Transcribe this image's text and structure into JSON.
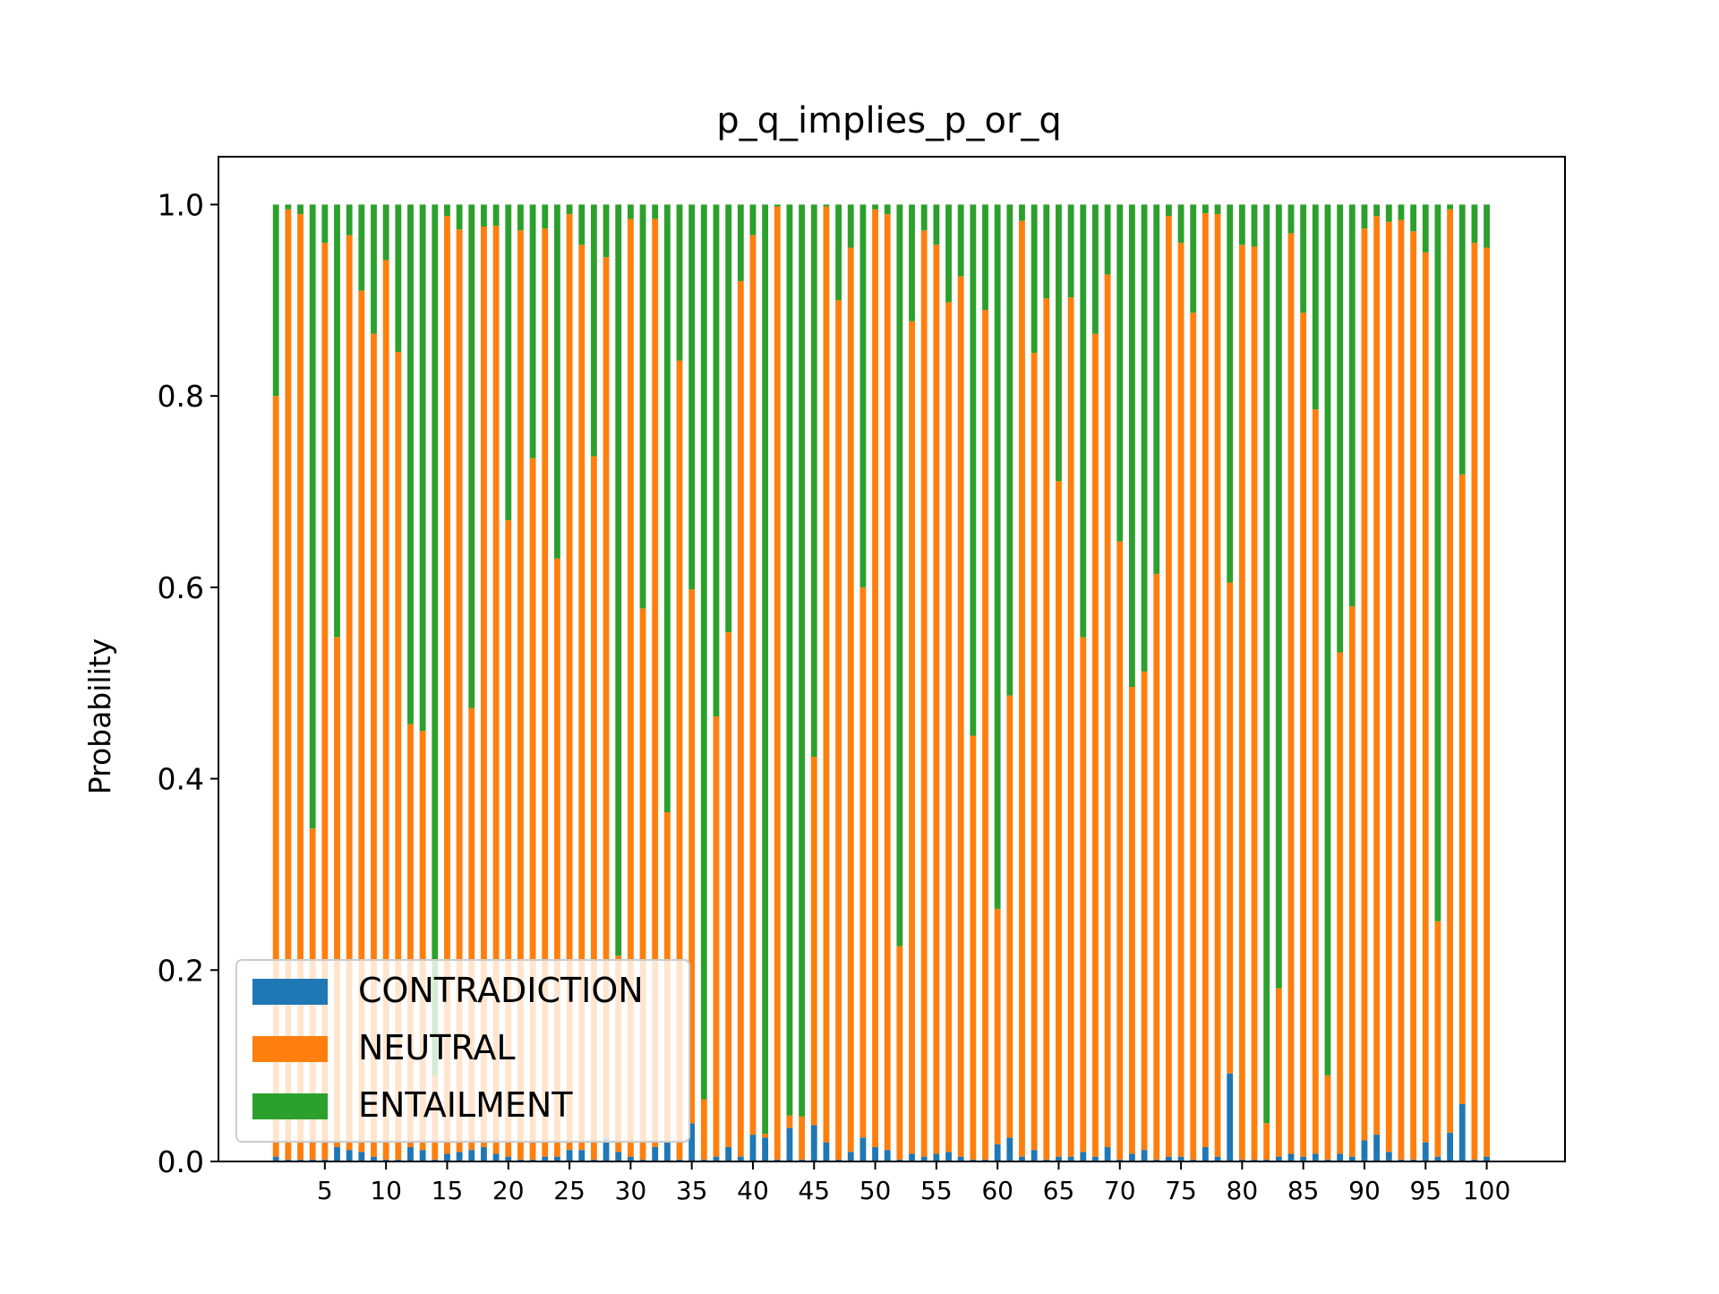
{
  "chart_data": {
    "type": "bar",
    "stacked": true,
    "title": "p_q_implies_p_or_q",
    "xlabel": "",
    "ylabel": "Probability",
    "xlim": [
      -3.7,
      106.4
    ],
    "ylim": [
      0,
      1.05
    ],
    "x": [
      1,
      2,
      3,
      4,
      5,
      6,
      7,
      8,
      9,
      10,
      11,
      12,
      13,
      14,
      15,
      16,
      17,
      18,
      19,
      20,
      21,
      22,
      23,
      24,
      25,
      26,
      27,
      28,
      29,
      30,
      31,
      32,
      33,
      34,
      35,
      36,
      37,
      38,
      39,
      40,
      41,
      42,
      43,
      44,
      45,
      46,
      47,
      48,
      49,
      50,
      51,
      52,
      53,
      54,
      55,
      56,
      57,
      58,
      59,
      60,
      61,
      62,
      63,
      64,
      65,
      66,
      67,
      68,
      69,
      70,
      71,
      72,
      73,
      74,
      75,
      76,
      77,
      78,
      79,
      80,
      81,
      82,
      83,
      84,
      85,
      86,
      87,
      88,
      89,
      90,
      91,
      92,
      93,
      94,
      95,
      96,
      97,
      98,
      99,
      100
    ],
    "x_ticks": [
      5,
      10,
      15,
      20,
      25,
      30,
      35,
      40,
      45,
      50,
      55,
      60,
      65,
      70,
      75,
      80,
      85,
      90,
      95,
      100
    ],
    "x_tick_labels": [
      "5",
      "10",
      "15",
      "20",
      "25",
      "30",
      "35",
      "40",
      "45",
      "50",
      "55",
      "60",
      "65",
      "70",
      "75",
      "80",
      "85",
      "90",
      "95",
      "100"
    ],
    "y_ticks": [
      0.0,
      0.2,
      0.4,
      0.6,
      0.8,
      1.0
    ],
    "y_tick_labels": [
      "0.0",
      "0.2",
      "0.4",
      "0.6",
      "0.8",
      "1.0"
    ],
    "series": [
      {
        "name": "CONTRADICTION",
        "color": "#1f77b4",
        "values": [
          0.005,
          0.002,
          0.002,
          0.002,
          0.002,
          0.015,
          0.012,
          0.01,
          0.005,
          0.002,
          0.002,
          0.015,
          0.012,
          0.002,
          0.008,
          0.01,
          0.012,
          0.015,
          0.008,
          0.005,
          0.002,
          0.002,
          0.005,
          0.005,
          0.012,
          0.012,
          0.002,
          0.025,
          0.01,
          0.005,
          0.002,
          0.015,
          0.02,
          0.002,
          0.04,
          0.002,
          0.005,
          0.015,
          0.005,
          0.028,
          0.025,
          0.002,
          0.035,
          0.002,
          0.038,
          0.02,
          0.002,
          0.01,
          0.025,
          0.015,
          0.012,
          0.002,
          0.008,
          0.005,
          0.008,
          0.01,
          0.005,
          0.002,
          0.002,
          0.018,
          0.025,
          0.005,
          0.012,
          0.002,
          0.005,
          0.005,
          0.01,
          0.005,
          0.015,
          0.002,
          0.008,
          0.012,
          0.002,
          0.005,
          0.005,
          0.002,
          0.015,
          0.005,
          0.092,
          0.002,
          0.002,
          0.002,
          0.005,
          0.008,
          0.005,
          0.008,
          0.002,
          0.008,
          0.005,
          0.022,
          0.028,
          0.01,
          0.002,
          0.002,
          0.02,
          0.005,
          0.03,
          0.06,
          0.002,
          0.005
        ]
      },
      {
        "name": "NEUTRAL",
        "color": "#ff7f0e",
        "values": [
          0.795,
          0.993,
          0.988,
          0.346,
          0.958,
          0.533,
          0.956,
          0.9,
          0.86,
          0.94,
          0.844,
          0.442,
          0.438,
          0.088,
          0.98,
          0.964,
          0.462,
          0.962,
          0.97,
          0.665,
          0.971,
          0.733,
          0.97,
          0.625,
          0.978,
          0.946,
          0.735,
          0.92,
          0.205,
          0.98,
          0.576,
          0.97,
          0.345,
          0.835,
          0.558,
          0.063,
          0.46,
          0.538,
          0.915,
          0.94,
          0.004,
          0.996,
          0.013,
          0.045,
          0.385,
          0.978,
          0.898,
          0.945,
          0.575,
          0.98,
          0.978,
          0.223,
          0.87,
          0.968,
          0.95,
          0.888,
          0.92,
          0.443,
          0.888,
          0.246,
          0.462,
          0.978,
          0.833,
          0.9,
          0.706,
          0.898,
          0.538,
          0.86,
          0.912,
          0.646,
          0.488,
          0.5,
          0.612,
          0.983,
          0.955,
          0.885,
          0.976,
          0.985,
          0.513,
          0.956,
          0.954,
          0.038,
          0.176,
          0.962,
          0.882,
          0.778,
          0.088,
          0.524,
          0.575,
          0.953,
          0.96,
          0.972,
          0.982,
          0.97,
          0.93,
          0.246,
          0.965,
          0.658,
          0.958,
          0.95
        ]
      },
      {
        "name": "ENTAILMENT",
        "color": "#2ca02c",
        "values": [
          0.2,
          0.005,
          0.01,
          0.652,
          0.04,
          0.452,
          0.032,
          0.09,
          0.135,
          0.058,
          0.154,
          0.543,
          0.55,
          0.91,
          0.012,
          0.026,
          0.526,
          0.023,
          0.022,
          0.33,
          0.027,
          0.265,
          0.025,
          0.37,
          0.01,
          0.042,
          0.263,
          0.055,
          0.785,
          0.015,
          0.422,
          0.015,
          0.635,
          0.163,
          0.402,
          0.935,
          0.535,
          0.447,
          0.08,
          0.032,
          0.971,
          0.002,
          0.952,
          0.953,
          0.577,
          0.002,
          0.1,
          0.045,
          0.4,
          0.005,
          0.01,
          0.775,
          0.122,
          0.027,
          0.042,
          0.102,
          0.075,
          0.555,
          0.11,
          0.736,
          0.513,
          0.017,
          0.155,
          0.098,
          0.289,
          0.097,
          0.452,
          0.135,
          0.073,
          0.352,
          0.504,
          0.488,
          0.386,
          0.012,
          0.04,
          0.113,
          0.009,
          0.01,
          0.395,
          0.042,
          0.044,
          0.96,
          0.819,
          0.03,
          0.113,
          0.214,
          0.91,
          0.468,
          0.42,
          0.025,
          0.012,
          0.018,
          0.016,
          0.028,
          0.05,
          0.749,
          0.005,
          0.282,
          0.04,
          0.045
        ]
      }
    ],
    "legend": {
      "position": "lower-left",
      "entries": [
        "CONTRADICTION",
        "NEUTRAL",
        "ENTAILMENT"
      ]
    },
    "grid": false
  }
}
